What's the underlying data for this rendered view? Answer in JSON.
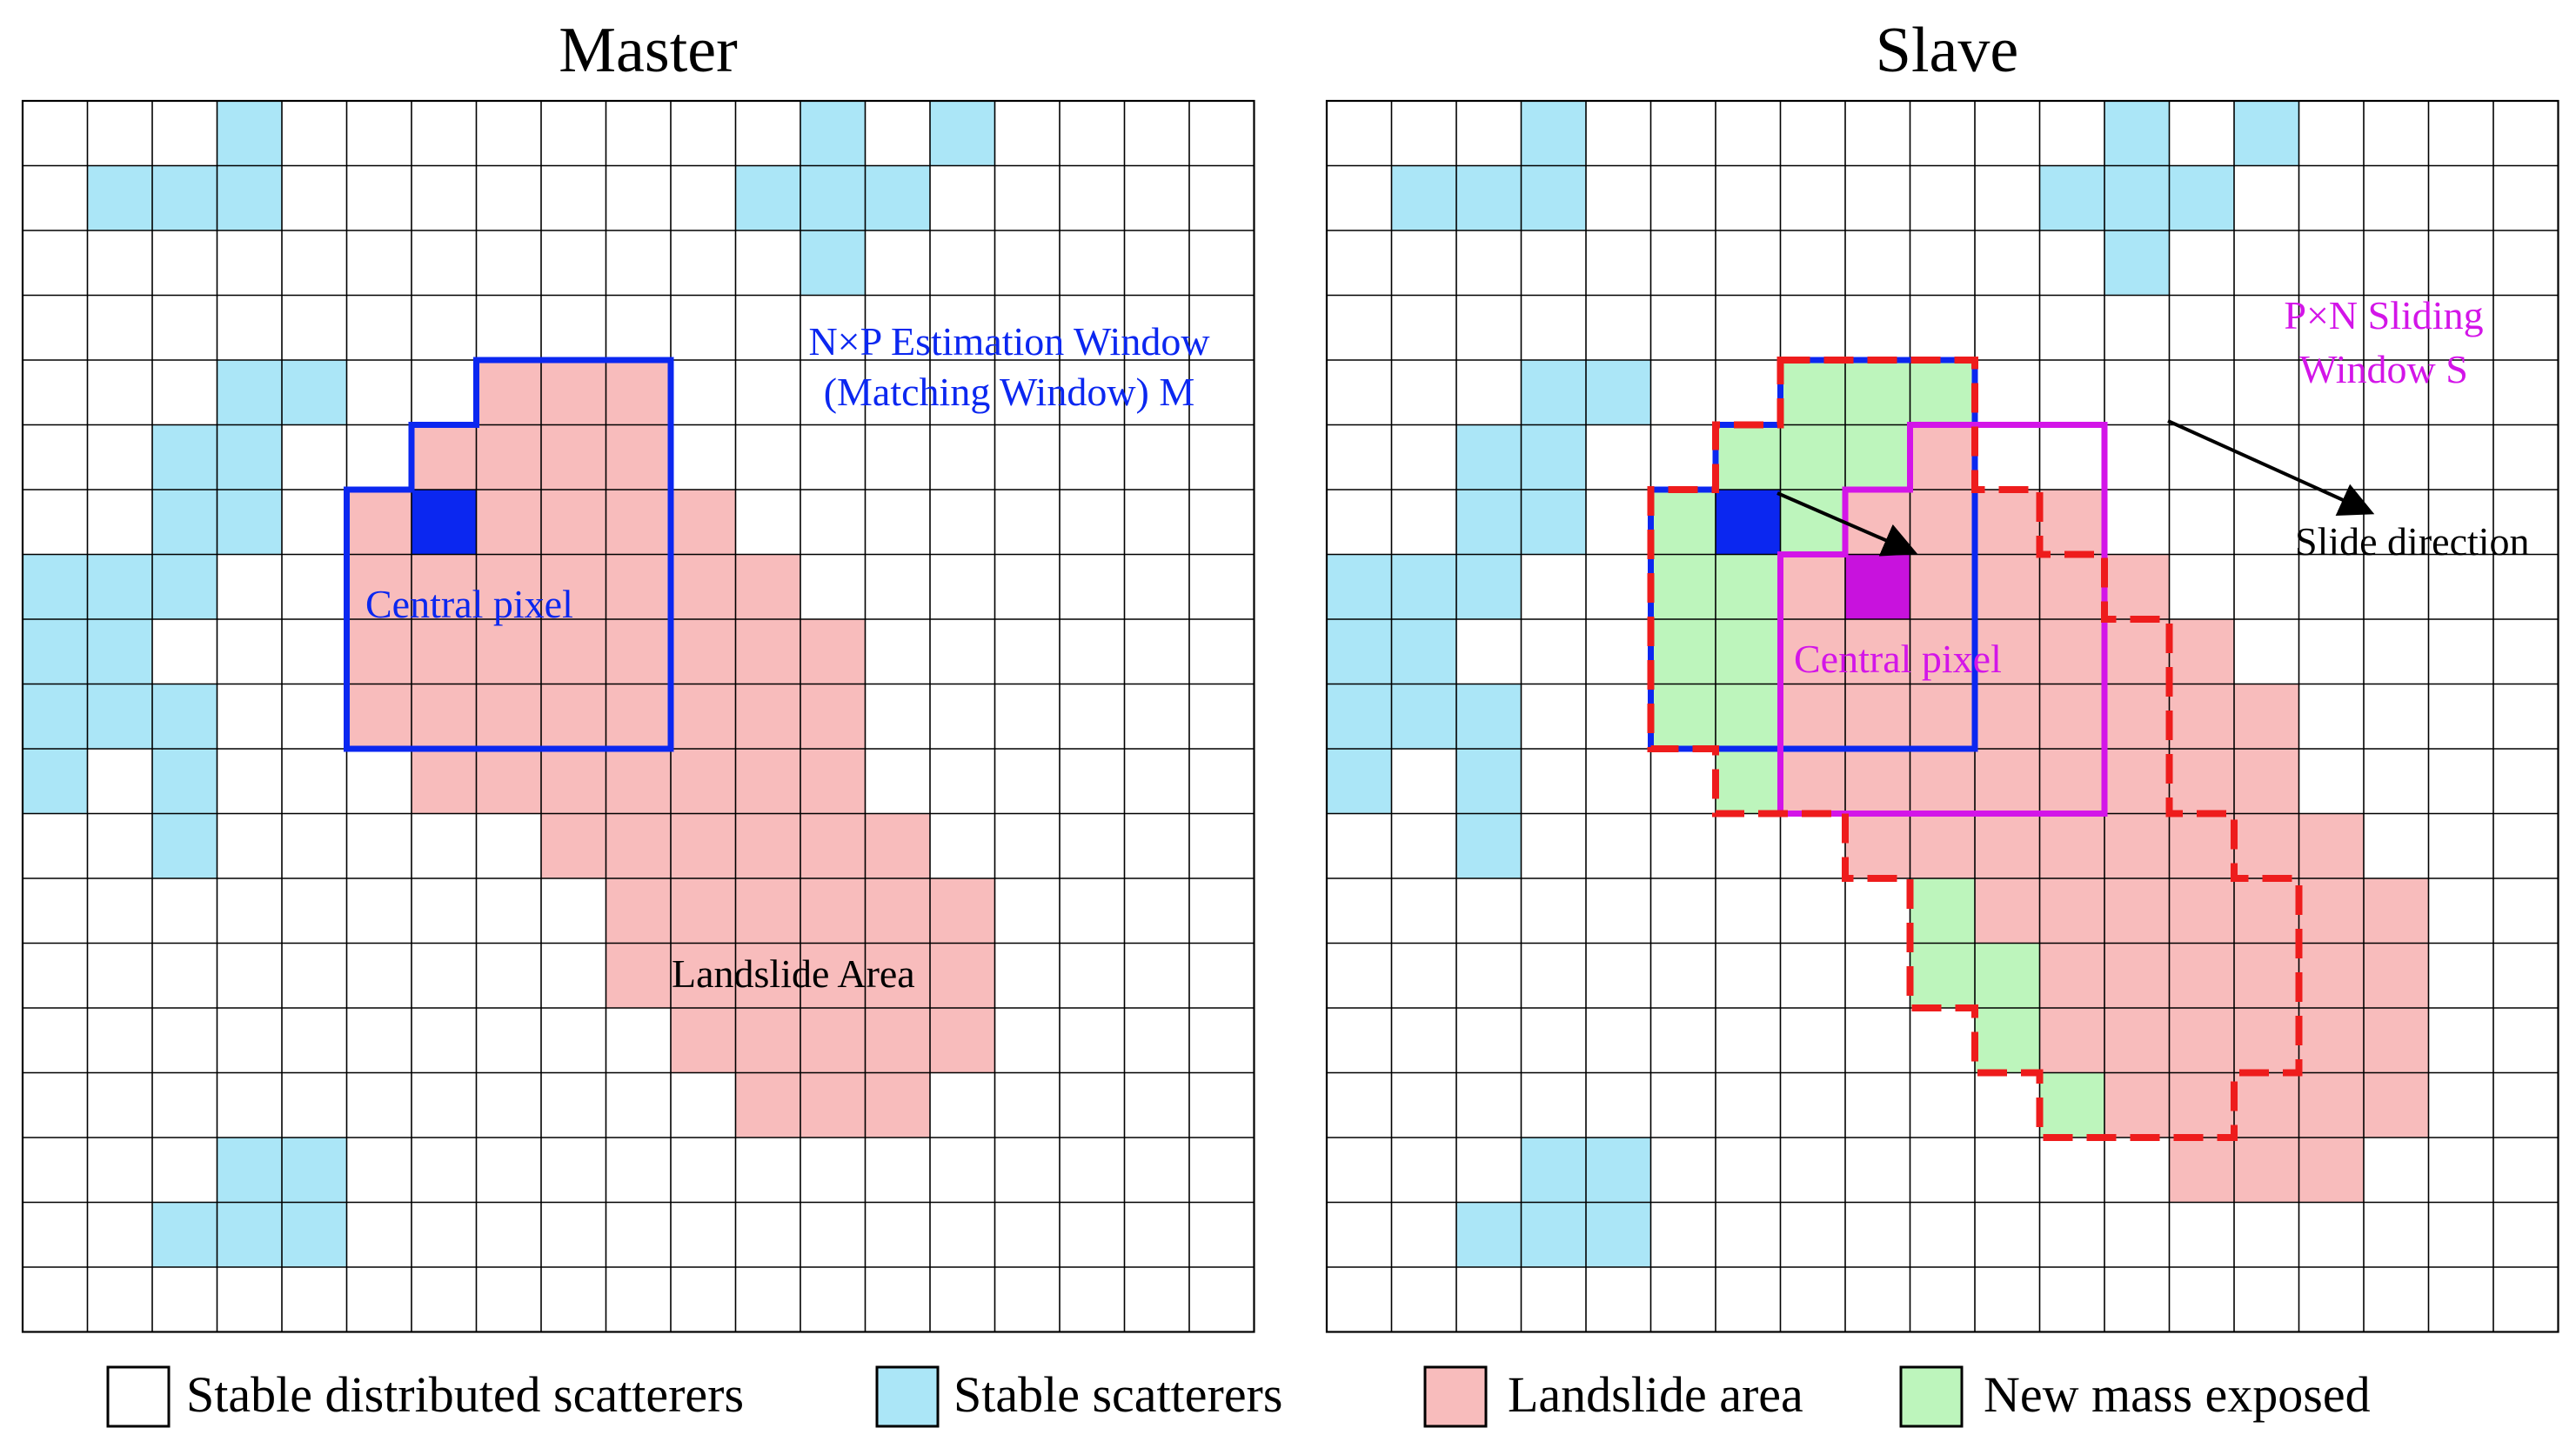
{
  "titles": {
    "master": "Master",
    "slave": "Slave"
  },
  "colors": {
    "stable_scatterer": "#abe6f7",
    "landslide": "#f8bcbc",
    "new_mass": "#bdf5bc",
    "grid": "#000000",
    "blue_window": "#0b27f0",
    "magenta_window": "#d315e8",
    "red_dashed": "#ee1c1c",
    "central_pixel_master": "#0b27f0",
    "central_pixel_slave": "#c812dd"
  },
  "grid": {
    "cols": 19,
    "rows": 19
  },
  "master": {
    "stable_scatterers": [
      [
        3,
        0
      ],
      [
        1,
        1
      ],
      [
        2,
        1
      ],
      [
        3,
        1
      ],
      [
        3,
        4
      ],
      [
        4,
        4
      ],
      [
        2,
        5
      ],
      [
        3,
        5
      ],
      [
        2,
        6
      ],
      [
        3,
        6
      ],
      [
        0,
        7
      ],
      [
        1,
        7
      ],
      [
        2,
        7
      ],
      [
        0,
        8
      ],
      [
        1,
        8
      ],
      [
        0,
        9
      ],
      [
        1,
        9
      ],
      [
        2,
        9
      ],
      [
        0,
        10
      ],
      [
        2,
        10
      ],
      [
        2,
        11
      ],
      [
        12,
        0
      ],
      [
        14,
        0
      ],
      [
        11,
        1
      ],
      [
        12,
        1
      ],
      [
        13,
        1
      ],
      [
        12,
        2
      ],
      [
        3,
        16
      ],
      [
        4,
        16
      ],
      [
        2,
        17
      ],
      [
        3,
        17
      ],
      [
        4,
        17
      ]
    ],
    "landslide_cells": [
      [
        7,
        4
      ],
      [
        8,
        4
      ],
      [
        9,
        4
      ],
      [
        6,
        5
      ],
      [
        7,
        5
      ],
      [
        8,
        5
      ],
      [
        9,
        5
      ],
      [
        5,
        6
      ],
      [
        7,
        6
      ],
      [
        8,
        6
      ],
      [
        9,
        6
      ],
      [
        10,
        6
      ],
      [
        5,
        7
      ],
      [
        6,
        7
      ],
      [
        7,
        7
      ],
      [
        8,
        7
      ],
      [
        9,
        7
      ],
      [
        10,
        7
      ],
      [
        11,
        7
      ],
      [
        5,
        8
      ],
      [
        6,
        8
      ],
      [
        7,
        8
      ],
      [
        8,
        8
      ],
      [
        9,
        8
      ],
      [
        10,
        8
      ],
      [
        11,
        8
      ],
      [
        12,
        8
      ],
      [
        5,
        9
      ],
      [
        6,
        9
      ],
      [
        7,
        9
      ],
      [
        8,
        9
      ],
      [
        9,
        9
      ],
      [
        10,
        9
      ],
      [
        11,
        9
      ],
      [
        12,
        9
      ],
      [
        6,
        10
      ],
      [
        7,
        10
      ],
      [
        8,
        10
      ],
      [
        9,
        10
      ],
      [
        10,
        10
      ],
      [
        11,
        10
      ],
      [
        12,
        10
      ],
      [
        8,
        11
      ],
      [
        9,
        11
      ],
      [
        10,
        11
      ],
      [
        11,
        11
      ],
      [
        12,
        11
      ],
      [
        13,
        11
      ],
      [
        9,
        12
      ],
      [
        10,
        12
      ],
      [
        11,
        12
      ],
      [
        12,
        12
      ],
      [
        13,
        12
      ],
      [
        14,
        12
      ],
      [
        9,
        13
      ],
      [
        10,
        13
      ],
      [
        11,
        13
      ],
      [
        12,
        13
      ],
      [
        13,
        13
      ],
      [
        14,
        13
      ],
      [
        10,
        14
      ],
      [
        11,
        14
      ],
      [
        12,
        14
      ],
      [
        13,
        14
      ],
      [
        14,
        14
      ],
      [
        11,
        15
      ],
      [
        12,
        15
      ],
      [
        13,
        15
      ]
    ],
    "central_pixel": [
      6,
      6
    ],
    "window_outline": [
      [
        7,
        4
      ],
      [
        10,
        4
      ],
      [
        10,
        10
      ],
      [
        5,
        10
      ],
      [
        5,
        6
      ],
      [
        6,
        6
      ],
      [
        6,
        5
      ],
      [
        7,
        5
      ]
    ],
    "labels": {
      "window": [
        "N×P Estimation Window",
        "(Matching Window) M"
      ],
      "central_pixel": "Central pixel",
      "landslide_area": "Landslide Area"
    }
  },
  "slave": {
    "stable_scatterers": [
      [
        3,
        0
      ],
      [
        1,
        1
      ],
      [
        2,
        1
      ],
      [
        3,
        1
      ],
      [
        3,
        4
      ],
      [
        4,
        4
      ],
      [
        2,
        5
      ],
      [
        3,
        5
      ],
      [
        2,
        6
      ],
      [
        3,
        6
      ],
      [
        0,
        7
      ],
      [
        1,
        7
      ],
      [
        2,
        7
      ],
      [
        0,
        8
      ],
      [
        1,
        8
      ],
      [
        0,
        9
      ],
      [
        1,
        9
      ],
      [
        2,
        9
      ],
      [
        0,
        10
      ],
      [
        2,
        10
      ],
      [
        2,
        11
      ],
      [
        12,
        0
      ],
      [
        14,
        0
      ],
      [
        11,
        1
      ],
      [
        12,
        1
      ],
      [
        13,
        1
      ],
      [
        12,
        2
      ],
      [
        3,
        16
      ],
      [
        4,
        16
      ],
      [
        2,
        17
      ],
      [
        3,
        17
      ],
      [
        4,
        17
      ]
    ],
    "new_mass_cells": [
      [
        7,
        4
      ],
      [
        8,
        4
      ],
      [
        9,
        4
      ],
      [
        6,
        5
      ],
      [
        7,
        5
      ],
      [
        8,
        5
      ],
      [
        5,
        6
      ],
      [
        6,
        6
      ],
      [
        7,
        6
      ],
      [
        5,
        7
      ],
      [
        6,
        7
      ],
      [
        5,
        8
      ],
      [
        6,
        8
      ],
      [
        5,
        9
      ],
      [
        6,
        9
      ],
      [
        6,
        10
      ],
      [
        9,
        12
      ],
      [
        9,
        13
      ],
      [
        10,
        13
      ],
      [
        10,
        14
      ],
      [
        11,
        15
      ]
    ],
    "landslide_cells": [
      [
        9,
        5
      ],
      [
        8,
        6
      ],
      [
        9,
        6
      ],
      [
        10,
        6
      ],
      [
        11,
        6
      ],
      [
        7,
        7
      ],
      [
        8,
        7
      ],
      [
        9,
        7
      ],
      [
        10,
        7
      ],
      [
        11,
        7
      ],
      [
        12,
        7
      ],
      [
        7,
        8
      ],
      [
        8,
        8
      ],
      [
        9,
        8
      ],
      [
        10,
        8
      ],
      [
        11,
        8
      ],
      [
        12,
        8
      ],
      [
        13,
        8
      ],
      [
        7,
        9
      ],
      [
        8,
        9
      ],
      [
        9,
        9
      ],
      [
        10,
        9
      ],
      [
        11,
        9
      ],
      [
        12,
        9
      ],
      [
        13,
        9
      ],
      [
        14,
        9
      ],
      [
        7,
        10
      ],
      [
        8,
        10
      ],
      [
        9,
        10
      ],
      [
        10,
        10
      ],
      [
        11,
        10
      ],
      [
        12,
        10
      ],
      [
        13,
        10
      ],
      [
        14,
        10
      ],
      [
        8,
        11
      ],
      [
        9,
        11
      ],
      [
        10,
        11
      ],
      [
        11,
        11
      ],
      [
        12,
        11
      ],
      [
        13,
        11
      ],
      [
        14,
        11
      ],
      [
        15,
        11
      ],
      [
        10,
        12
      ],
      [
        11,
        12
      ],
      [
        12,
        12
      ],
      [
        13,
        12
      ],
      [
        14,
        12
      ],
      [
        15,
        12
      ],
      [
        16,
        12
      ],
      [
        11,
        13
      ],
      [
        12,
        13
      ],
      [
        13,
        13
      ],
      [
        14,
        13
      ],
      [
        15,
        13
      ],
      [
        16,
        13
      ],
      [
        11,
        14
      ],
      [
        12,
        14
      ],
      [
        13,
        14
      ],
      [
        14,
        14
      ],
      [
        15,
        14
      ],
      [
        16,
        14
      ],
      [
        12,
        15
      ],
      [
        13,
        15
      ],
      [
        14,
        15
      ],
      [
        15,
        15
      ],
      [
        16,
        15
      ],
      [
        13,
        16
      ],
      [
        14,
        16
      ],
      [
        15,
        16
      ]
    ],
    "central_pixel_old": [
      6,
      6
    ],
    "central_pixel_new": [
      8,
      7
    ],
    "blue_outline": [
      [
        7,
        4
      ],
      [
        10,
        4
      ],
      [
        10,
        10
      ],
      [
        5,
        10
      ],
      [
        5,
        6
      ],
      [
        6,
        6
      ],
      [
        6,
        5
      ],
      [
        7,
        5
      ]
    ],
    "magenta_outline": [
      [
        9,
        5
      ],
      [
        12,
        5
      ],
      [
        12,
        11
      ],
      [
        7,
        11
      ],
      [
        7,
        7
      ],
      [
        8,
        7
      ],
      [
        8,
        6
      ],
      [
        9,
        6
      ]
    ],
    "red_dashed_outline": [
      [
        7,
        4
      ],
      [
        10,
        4
      ],
      [
        10,
        6
      ],
      [
        11,
        6
      ],
      [
        11,
        7
      ],
      [
        12,
        7
      ],
      [
        12,
        8
      ],
      [
        13,
        8
      ],
      [
        13,
        11
      ],
      [
        14,
        11
      ],
      [
        14,
        12
      ],
      [
        15,
        12
      ],
      [
        15,
        15
      ],
      [
        14,
        15
      ],
      [
        14,
        16
      ],
      [
        11,
        16
      ],
      [
        11,
        15
      ],
      [
        10,
        15
      ],
      [
        10,
        14
      ],
      [
        9,
        14
      ],
      [
        9,
        12
      ],
      [
        8,
        12
      ],
      [
        8,
        11
      ],
      [
        6,
        11
      ],
      [
        6,
        10
      ],
      [
        5,
        10
      ],
      [
        5,
        6
      ],
      [
        6,
        6
      ],
      [
        6,
        5
      ],
      [
        7,
        5
      ]
    ],
    "labels": {
      "window": [
        "P×N Sliding",
        "Window  S"
      ],
      "central_pixel": "Central pixel",
      "slide_direction": "Slide direction"
    }
  },
  "legend": {
    "items": [
      {
        "key": "stable-distributed",
        "label": "Stable distributed scatterers",
        "color": "#ffffff"
      },
      {
        "key": "stable",
        "label": "Stable scatterers",
        "color": "#abe6f7"
      },
      {
        "key": "landslide",
        "label": "Landslide area",
        "color": "#f8bcbc"
      },
      {
        "key": "new-mass",
        "label": "New mass exposed",
        "color": "#bdf5bc"
      }
    ]
  }
}
